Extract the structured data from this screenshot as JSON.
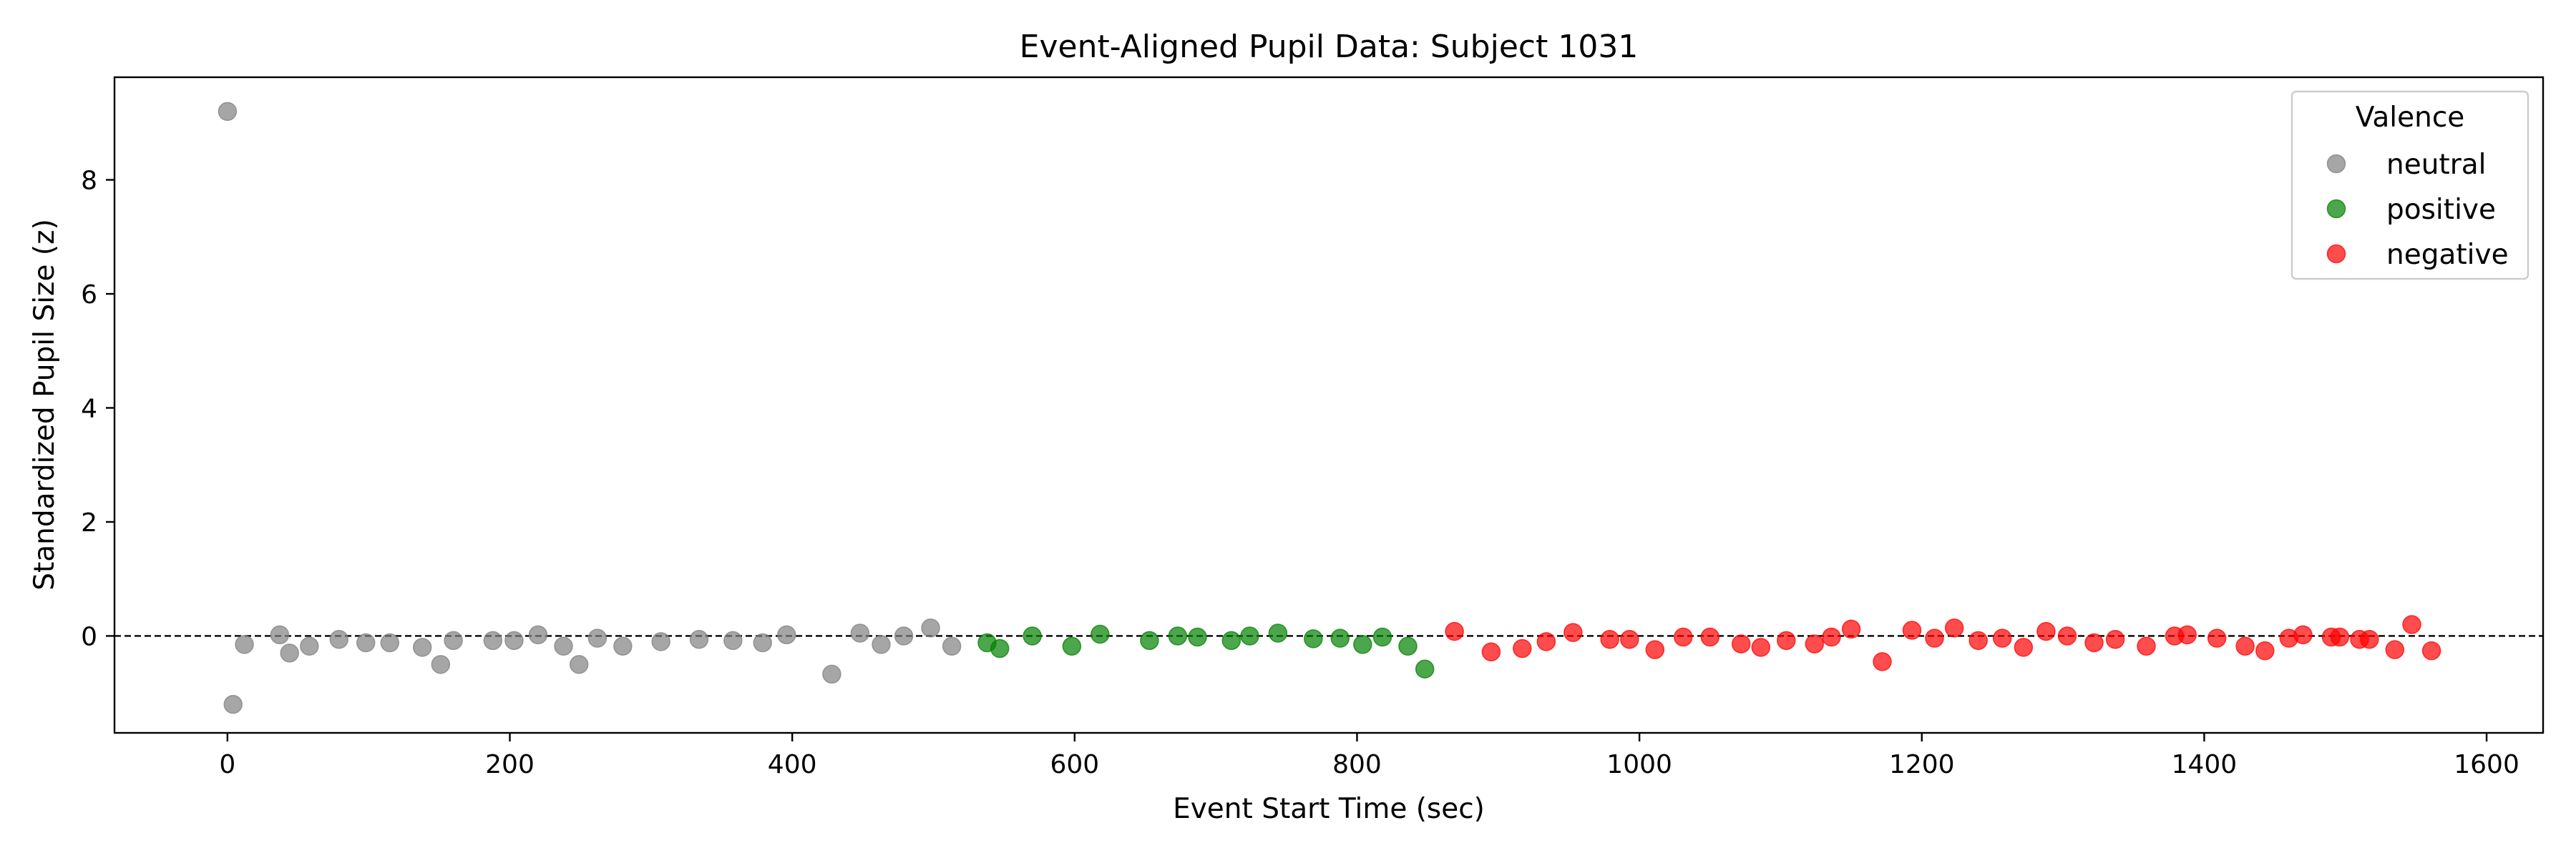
{
  "chart_data": {
    "type": "scatter",
    "title": "Event-Aligned Pupil Data: Subject 1031",
    "xlabel": "Event Start Time (sec)",
    "ylabel": "Standardized Pupil Size (z)",
    "xlim": [
      -80,
      1640
    ],
    "ylim": [
      -1.7,
      9.8
    ],
    "xticks": [
      0,
      200,
      400,
      600,
      800,
      1000,
      1200,
      1400,
      1600
    ],
    "yticks": [
      0,
      2,
      4,
      6,
      8
    ],
    "reference_line": {
      "y": 0,
      "style": "dashed",
      "color": "#000000"
    },
    "grid": false,
    "legend": {
      "title": "Valence",
      "placement": "top-right"
    },
    "series": [
      {
        "name": "neutral",
        "color": "#808080",
        "points": [
          [
            0,
            9.2
          ],
          [
            4,
            -1.2
          ],
          [
            12,
            -0.15
          ],
          [
            37,
            0.02
          ],
          [
            44,
            -0.3
          ],
          [
            58,
            -0.18
          ],
          [
            79,
            -0.06
          ],
          [
            98,
            -0.12
          ],
          [
            115,
            -0.12
          ],
          [
            138,
            -0.2
          ],
          [
            151,
            -0.5
          ],
          [
            160,
            -0.08
          ],
          [
            188,
            -0.08
          ],
          [
            203,
            -0.08
          ],
          [
            220,
            0.02
          ],
          [
            238,
            -0.18
          ],
          [
            249,
            -0.5
          ],
          [
            262,
            -0.04
          ],
          [
            280,
            -0.18
          ],
          [
            307,
            -0.1
          ],
          [
            334,
            -0.06
          ],
          [
            358,
            -0.08
          ],
          [
            379,
            -0.12
          ],
          [
            396,
            0.02
          ],
          [
            428,
            -0.67
          ],
          [
            448,
            0.05
          ],
          [
            463,
            -0.15
          ],
          [
            479,
            0.0
          ],
          [
            498,
            0.14
          ],
          [
            513,
            -0.18
          ]
        ]
      },
      {
        "name": "positive",
        "color": "#008000",
        "points": [
          [
            538,
            -0.12
          ],
          [
            547,
            -0.22
          ],
          [
            570,
            0.0
          ],
          [
            598,
            -0.18
          ],
          [
            618,
            0.03
          ],
          [
            653,
            -0.08
          ],
          [
            673,
            0.0
          ],
          [
            687,
            -0.02
          ],
          [
            711,
            -0.08
          ],
          [
            724,
            0.0
          ],
          [
            744,
            0.05
          ],
          [
            769,
            -0.05
          ],
          [
            788,
            -0.04
          ],
          [
            804,
            -0.15
          ],
          [
            818,
            -0.02
          ],
          [
            836,
            -0.18
          ],
          [
            848,
            -0.58
          ]
        ]
      },
      {
        "name": "negative",
        "color": "#ff0000",
        "points": [
          [
            869,
            0.08
          ],
          [
            895,
            -0.28
          ],
          [
            917,
            -0.22
          ],
          [
            934,
            -0.1
          ],
          [
            953,
            0.06
          ],
          [
            979,
            -0.06
          ],
          [
            993,
            -0.06
          ],
          [
            1011,
            -0.24
          ],
          [
            1031,
            -0.02
          ],
          [
            1050,
            -0.02
          ],
          [
            1072,
            -0.14
          ],
          [
            1086,
            -0.2
          ],
          [
            1104,
            -0.08
          ],
          [
            1124,
            -0.14
          ],
          [
            1136,
            -0.02
          ],
          [
            1150,
            0.12
          ],
          [
            1172,
            -0.45
          ],
          [
            1193,
            0.1
          ],
          [
            1209,
            -0.04
          ],
          [
            1223,
            0.14
          ],
          [
            1240,
            -0.08
          ],
          [
            1257,
            -0.04
          ],
          [
            1272,
            -0.2
          ],
          [
            1288,
            0.08
          ],
          [
            1303,
            0.0
          ],
          [
            1322,
            -0.12
          ],
          [
            1337,
            -0.06
          ],
          [
            1359,
            -0.18
          ],
          [
            1379,
            0.0
          ],
          [
            1388,
            0.02
          ],
          [
            1409,
            -0.04
          ],
          [
            1429,
            -0.18
          ],
          [
            1443,
            -0.26
          ],
          [
            1460,
            -0.04
          ],
          [
            1470,
            0.02
          ],
          [
            1490,
            -0.02
          ],
          [
            1496,
            -0.02
          ],
          [
            1510,
            -0.06
          ],
          [
            1517,
            -0.06
          ],
          [
            1535,
            -0.24
          ],
          [
            1547,
            0.2
          ],
          [
            1561,
            -0.26
          ]
        ]
      }
    ]
  }
}
